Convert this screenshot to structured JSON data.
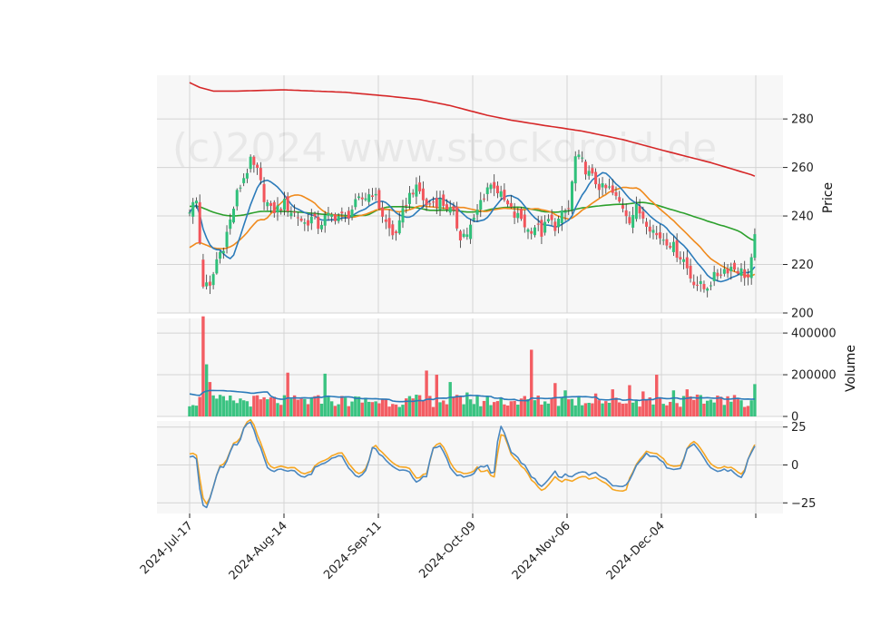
{
  "chart_data": {
    "type": "candlestick",
    "watermark": "(c)2024 www.stockdroid.de",
    "colors": {
      "up": "#2fc07a",
      "down": "#f2545b",
      "ma_fast": "#2b7bba",
      "ma_mid": "#f08a1c",
      "ma_slow": "#2ca02c",
      "ma_long": "#d62728",
      "vol_ma": "#2b7bba",
      "osc_a": "#4a87c0",
      "osc_b": "#f5a623",
      "grid": "#d4d4d4",
      "panel_bg": "#f7f7f7"
    },
    "x_tick_labels": [
      "2024-Jul-17",
      "2024-Aug-14",
      "2024-Sep-11",
      "2024-Oct-09",
      "2024-Nov-06",
      "2024-Dec-04"
    ],
    "price_panel": {
      "ylabel": "Price",
      "ylim": [
        200,
        298
      ],
      "yticks": [
        200,
        220,
        240,
        260,
        280
      ],
      "ma_long": [
        [
          0,
          295
        ],
        [
          3,
          293
        ],
        [
          7,
          291.5
        ],
        [
          14,
          291.5
        ],
        [
          28,
          292
        ],
        [
          46,
          291
        ],
        [
          58,
          289.5
        ],
        [
          68,
          288
        ],
        [
          77,
          285.5
        ],
        [
          88,
          281.5
        ],
        [
          95,
          279.5
        ],
        [
          104,
          277.5
        ],
        [
          116,
          275
        ],
        [
          128,
          271.5
        ],
        [
          140,
          267
        ],
        [
          154,
          262
        ],
        [
          166,
          257
        ],
        [
          178,
          250
        ]
      ]
    },
    "volume_panel": {
      "ylabel": "Volume",
      "ylim": [
        0,
        470000
      ],
      "yticks": [
        0,
        200000,
        400000
      ],
      "ytick_labels": [
        "0",
        "200000",
        "400000"
      ]
    },
    "oscillator_panel": {
      "ylim": [
        -32,
        29
      ],
      "yticks": [
        -25,
        0,
        25
      ],
      "ytick_labels": [
        "−25",
        "0",
        "25"
      ]
    }
  }
}
